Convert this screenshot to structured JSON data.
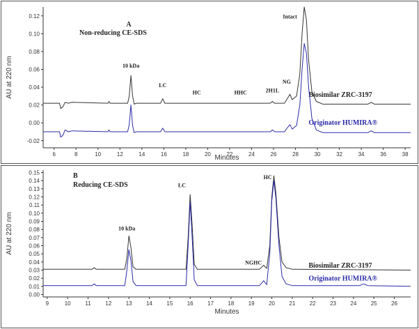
{
  "chart_data": [
    {
      "type": "line",
      "panel_letter": "A",
      "title": "Non-reducing CE-SDS",
      "xlabel": "Minutes",
      "ylabel": "AU at 220 nm",
      "xlim": [
        5,
        38.5
      ],
      "ylim": [
        -0.028,
        0.13
      ],
      "xticks": [
        6,
        8,
        10,
        12,
        14,
        16,
        18,
        20,
        22,
        24,
        26,
        28,
        30,
        32,
        34,
        36,
        38
      ],
      "xtick_labels": [
        "6",
        "8",
        "10",
        "12",
        "14",
        "16",
        "18",
        "20",
        "22",
        "24",
        "26",
        "28",
        "30",
        "32",
        "34",
        "36",
        "38"
      ],
      "yticks": [
        -0.02,
        0.0,
        0.02,
        0.04,
        0.06,
        0.08,
        0.1,
        0.12
      ],
      "ytick_labels": [
        "-0.02",
        "0.00",
        "0.02",
        "0.04",
        "0.06",
        "0.08",
        "0.10",
        "0.12"
      ],
      "grid": false,
      "peak_labels": [
        {
          "text": "10 kDa",
          "x": 13.0,
          "y": 0.062
        },
        {
          "text": "LC",
          "x": 15.9,
          "y": 0.04
        },
        {
          "text": "HC",
          "x": 19.0,
          "y": 0.032
        },
        {
          "text": "HHC",
          "x": 23.0,
          "y": 0.032
        },
        {
          "text": "2H1L",
          "x": 25.9,
          "y": 0.034
        },
        {
          "text": "NG",
          "x": 27.2,
          "y": 0.044
        },
        {
          "text": "Intact",
          "x": 27.5,
          "y": 0.117
        }
      ],
      "series": [
        {
          "name": "Biosimilar ZRC-3197",
          "color": "#333333",
          "baseline": 0.022,
          "label_position": {
            "x": 29.2,
            "y": 0.029
          },
          "points": [
            [
              5.0,
              0.022
            ],
            [
              6.5,
              0.022
            ],
            [
              6.6,
              0.016
            ],
            [
              6.8,
              0.018
            ],
            [
              7.0,
              0.023
            ],
            [
              7.3,
              0.022
            ],
            [
              7.6,
              0.023
            ],
            [
              10.9,
              0.022
            ],
            [
              11.0,
              0.024
            ],
            [
              11.1,
              0.022
            ],
            [
              12.7,
              0.022
            ],
            [
              12.85,
              0.03
            ],
            [
              13.0,
              0.053
            ],
            [
              13.15,
              0.03
            ],
            [
              13.3,
              0.021
            ],
            [
              13.5,
              0.022
            ],
            [
              15.7,
              0.022
            ],
            [
              15.9,
              0.027
            ],
            [
              16.1,
              0.022
            ],
            [
              25.7,
              0.022
            ],
            [
              25.9,
              0.024
            ],
            [
              26.1,
              0.022
            ],
            [
              27.0,
              0.022
            ],
            [
              27.3,
              0.028
            ],
            [
              27.5,
              0.032
            ],
            [
              27.7,
              0.026
            ],
            [
              28.1,
              0.03
            ],
            [
              28.4,
              0.055
            ],
            [
              28.6,
              0.1
            ],
            [
              28.8,
              0.13
            ],
            [
              29.0,
              0.115
            ],
            [
              29.2,
              0.07
            ],
            [
              29.5,
              0.035
            ],
            [
              29.9,
              0.024
            ],
            [
              30.5,
              0.021
            ],
            [
              34.6,
              0.021
            ],
            [
              34.9,
              0.023
            ],
            [
              35.2,
              0.021
            ],
            [
              38.5,
              0.021
            ]
          ]
        },
        {
          "name": "Originator HUMIRA®",
          "color": "#2a2aa8",
          "baseline": -0.01,
          "label_position": {
            "x": 29.2,
            "y": -0.002
          },
          "points": [
            [
              5.0,
              -0.01
            ],
            [
              6.5,
              -0.01
            ],
            [
              6.6,
              -0.016
            ],
            [
              6.8,
              -0.014
            ],
            [
              7.0,
              -0.008
            ],
            [
              7.3,
              -0.01
            ],
            [
              7.6,
              -0.009
            ],
            [
              10.9,
              -0.01
            ],
            [
              11.0,
              -0.008
            ],
            [
              11.1,
              -0.01
            ],
            [
              12.7,
              -0.01
            ],
            [
              12.85,
              -0.002
            ],
            [
              13.0,
              0.02
            ],
            [
              13.15,
              -0.003
            ],
            [
              13.3,
              -0.011
            ],
            [
              13.5,
              -0.01
            ],
            [
              15.7,
              -0.01
            ],
            [
              15.9,
              -0.006
            ],
            [
              16.1,
              -0.01
            ],
            [
              25.7,
              -0.01
            ],
            [
              25.9,
              -0.008
            ],
            [
              26.1,
              -0.01
            ],
            [
              27.0,
              -0.01
            ],
            [
              27.3,
              -0.005
            ],
            [
              27.5,
              -0.002
            ],
            [
              27.7,
              -0.007
            ],
            [
              28.1,
              -0.003
            ],
            [
              28.4,
              0.02
            ],
            [
              28.6,
              0.06
            ],
            [
              28.8,
              0.089
            ],
            [
              29.0,
              0.078
            ],
            [
              29.2,
              0.04
            ],
            [
              29.5,
              0.005
            ],
            [
              29.9,
              -0.008
            ],
            [
              30.5,
              -0.011
            ],
            [
              34.6,
              -0.011
            ],
            [
              34.9,
              -0.009
            ],
            [
              35.2,
              -0.011
            ],
            [
              38.5,
              -0.011
            ]
          ]
        }
      ]
    },
    {
      "type": "line",
      "panel_letter": "B",
      "title": "Reducing CE-SDS",
      "xlabel": "Minutes",
      "ylabel": "AU at 220 nm",
      "xlim": [
        8.8,
        26.8
      ],
      "ylim": [
        -0.003,
        0.153
      ],
      "xticks": [
        9,
        10,
        11,
        12,
        13,
        14,
        15,
        16,
        17,
        18,
        19,
        20,
        21,
        22,
        23,
        24,
        25,
        26
      ],
      "xtick_labels": [
        "9",
        "10",
        "11",
        "12",
        "13",
        "14",
        "15",
        "16",
        "17",
        "18",
        "19",
        "20",
        "21",
        "22",
        "23",
        "24",
        "25",
        "26"
      ],
      "yticks": [
        0.0,
        0.01,
        0.02,
        0.03,
        0.04,
        0.05,
        0.06,
        0.07,
        0.08,
        0.09,
        0.1,
        0.11,
        0.12,
        0.13,
        0.14,
        0.15
      ],
      "ytick_labels": [
        "0.00",
        "0.01",
        "0.02",
        "0.03",
        "0.04",
        "0.05",
        "0.06",
        "0.07",
        "0.08",
        "0.09",
        "0.10",
        "0.11",
        "0.12",
        "0.13",
        "0.14",
        "0.15"
      ],
      "grid": false,
      "peak_labels": [
        {
          "text": "10 kDa",
          "x": 12.9,
          "y": 0.079
        },
        {
          "text": "LC",
          "x": 15.6,
          "y": 0.132
        },
        {
          "text": "NGHC",
          "x": 19.1,
          "y": 0.037
        },
        {
          "text": "HC",
          "x": 19.8,
          "y": 0.142
        }
      ],
      "series": [
        {
          "name": "Biosimilar ZRC-3197",
          "color": "#333333",
          "baseline": 0.031,
          "label_position": {
            "x": 21.8,
            "y": 0.033
          },
          "points": [
            [
              8.8,
              0.031
            ],
            [
              11.2,
              0.031
            ],
            [
              11.3,
              0.033
            ],
            [
              11.4,
              0.031
            ],
            [
              12.8,
              0.031
            ],
            [
              12.9,
              0.045
            ],
            [
              13.0,
              0.072
            ],
            [
              13.1,
              0.058
            ],
            [
              13.2,
              0.034
            ],
            [
              13.35,
              0.031
            ],
            [
              15.8,
              0.031
            ],
            [
              15.9,
              0.07
            ],
            [
              16.0,
              0.123
            ],
            [
              16.1,
              0.085
            ],
            [
              16.2,
              0.037
            ],
            [
              16.35,
              0.031
            ],
            [
              19.4,
              0.031
            ],
            [
              19.6,
              0.036
            ],
            [
              19.75,
              0.032
            ],
            [
              19.9,
              0.06
            ],
            [
              20.0,
              0.12
            ],
            [
              20.1,
              0.146
            ],
            [
              20.2,
              0.125
            ],
            [
              20.35,
              0.07
            ],
            [
              20.5,
              0.04
            ],
            [
              20.7,
              0.033
            ],
            [
              21.0,
              0.031
            ],
            [
              26.8,
              0.03
            ]
          ]
        },
        {
          "name": "Originator HUMIRA®",
          "color": "#2a2aa8",
          "baseline": 0.011,
          "label_position": {
            "x": 21.8,
            "y": 0.017
          },
          "points": [
            [
              8.8,
              0.011
            ],
            [
              11.2,
              0.011
            ],
            [
              11.3,
              0.013
            ],
            [
              11.4,
              0.011
            ],
            [
              12.8,
              0.011
            ],
            [
              12.9,
              0.03
            ],
            [
              13.0,
              0.055
            ],
            [
              13.1,
              0.042
            ],
            [
              13.2,
              0.016
            ],
            [
              13.35,
              0.011
            ],
            [
              15.8,
              0.011
            ],
            [
              15.9,
              0.06
            ],
            [
              16.0,
              0.114
            ],
            [
              16.1,
              0.07
            ],
            [
              16.2,
              0.018
            ],
            [
              16.35,
              0.011
            ],
            [
              19.4,
              0.011
            ],
            [
              19.6,
              0.017
            ],
            [
              19.75,
              0.012
            ],
            [
              19.9,
              0.05
            ],
            [
              20.0,
              0.115
            ],
            [
              20.1,
              0.14
            ],
            [
              20.2,
              0.118
            ],
            [
              20.35,
              0.06
            ],
            [
              20.5,
              0.022
            ],
            [
              20.7,
              0.013
            ],
            [
              21.0,
              0.011
            ],
            [
              24.3,
              0.011
            ],
            [
              24.5,
              0.013
            ],
            [
              24.7,
              0.011
            ],
            [
              26.8,
              0.01
            ]
          ]
        }
      ]
    }
  ]
}
